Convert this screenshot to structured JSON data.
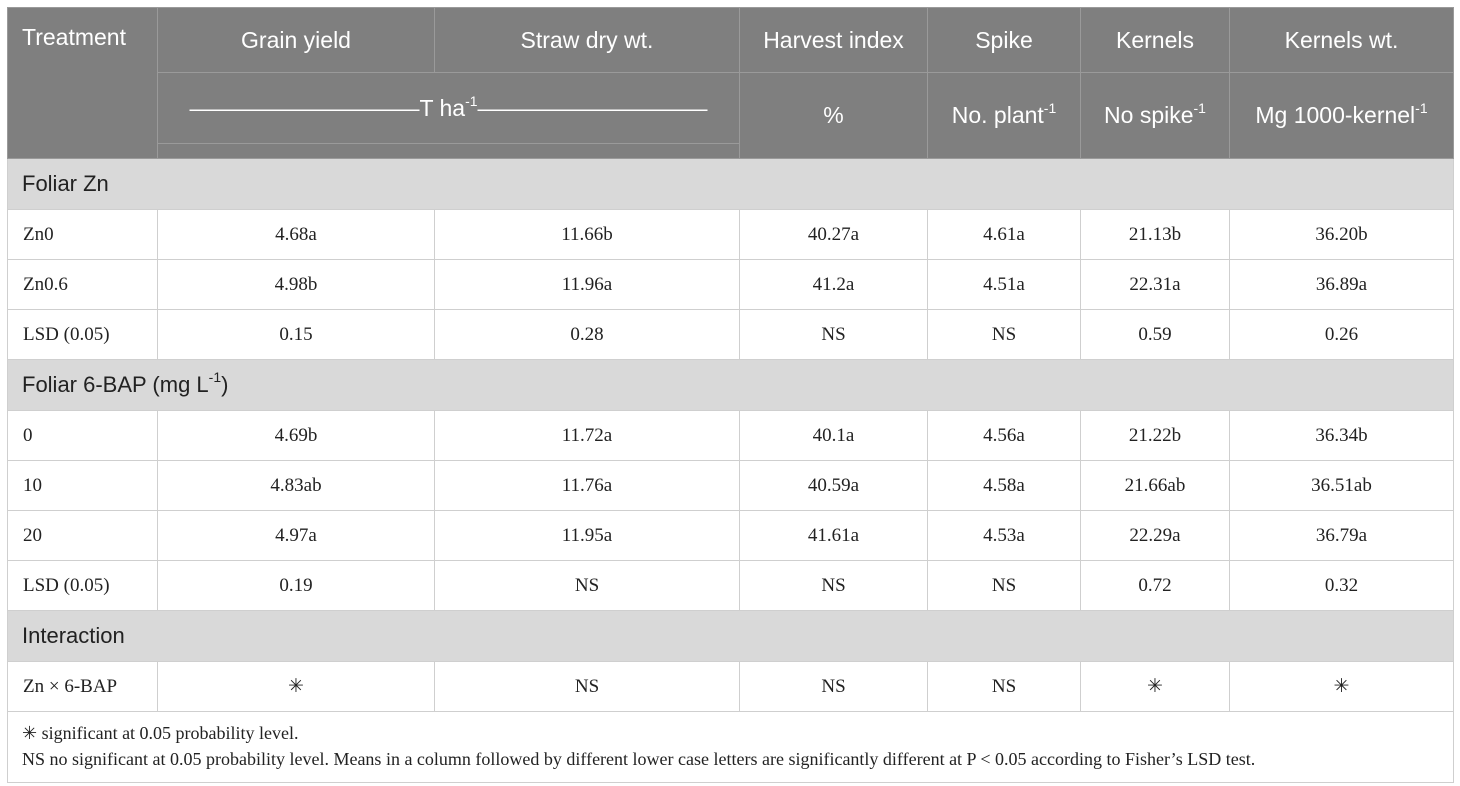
{
  "header": {
    "columns": [
      "Treatment",
      "Grain yield",
      "Straw dry wt.",
      "Harvest index",
      "Spike",
      "Kernels",
      "Kernels wt."
    ],
    "units": {
      "yield_straw": {
        "base": "——————————T ha",
        "sup": "-1",
        "tail": "——————————"
      },
      "harvest_index": "%",
      "spike": {
        "base": "No. plant",
        "sup": "-1"
      },
      "kernels": {
        "base": "No spike",
        "sup": "-1"
      },
      "kernels_wt": {
        "base": "Mg 1000-kernel",
        "sup": "-1"
      }
    }
  },
  "sections": [
    {
      "title": {
        "base": "Foliar Zn"
      },
      "rows": [
        [
          "Zn0",
          "4.68a",
          "11.66b",
          "40.27a",
          "4.61a",
          "21.13b",
          "36.20b"
        ],
        [
          "Zn0.6",
          "4.98b",
          "11.96a",
          "41.2a",
          "4.51a",
          "22.31a",
          "36.89a"
        ],
        [
          "LSD (0.05)",
          "0.15",
          "0.28",
          "NS",
          "NS",
          "0.59",
          "0.26"
        ]
      ]
    },
    {
      "title": {
        "base": "Foliar 6-BAP (mg L",
        "sup": "-1",
        "tail": ")"
      },
      "rows": [
        [
          "0",
          "4.69b",
          "11.72a",
          "40.1a",
          "4.56a",
          "21.22b",
          "36.34b"
        ],
        [
          "10",
          "4.83ab",
          "11.76a",
          "40.59a",
          "4.58a",
          "21.66ab",
          "36.51ab"
        ],
        [
          "20",
          "4.97a",
          "11.95a",
          "41.61a",
          "4.53a",
          "22.29a",
          "36.79a"
        ],
        [
          "LSD (0.05)",
          "0.19",
          "NS",
          "NS",
          "NS",
          "0.72",
          "0.32"
        ]
      ]
    },
    {
      "title": {
        "base": "Interaction"
      },
      "rows": [
        [
          "Zn × 6-BAP",
          "✳",
          "NS",
          "NS",
          "NS",
          "✳",
          "✳"
        ]
      ]
    }
  ],
  "footnotes": [
    "✳ significant at 0.05 probability level.",
    "NS no significant at 0.05 probability level. Means in a column followed by different lower case letters are significantly different at P < 0.05 according to Fisher’s LSD test."
  ]
}
